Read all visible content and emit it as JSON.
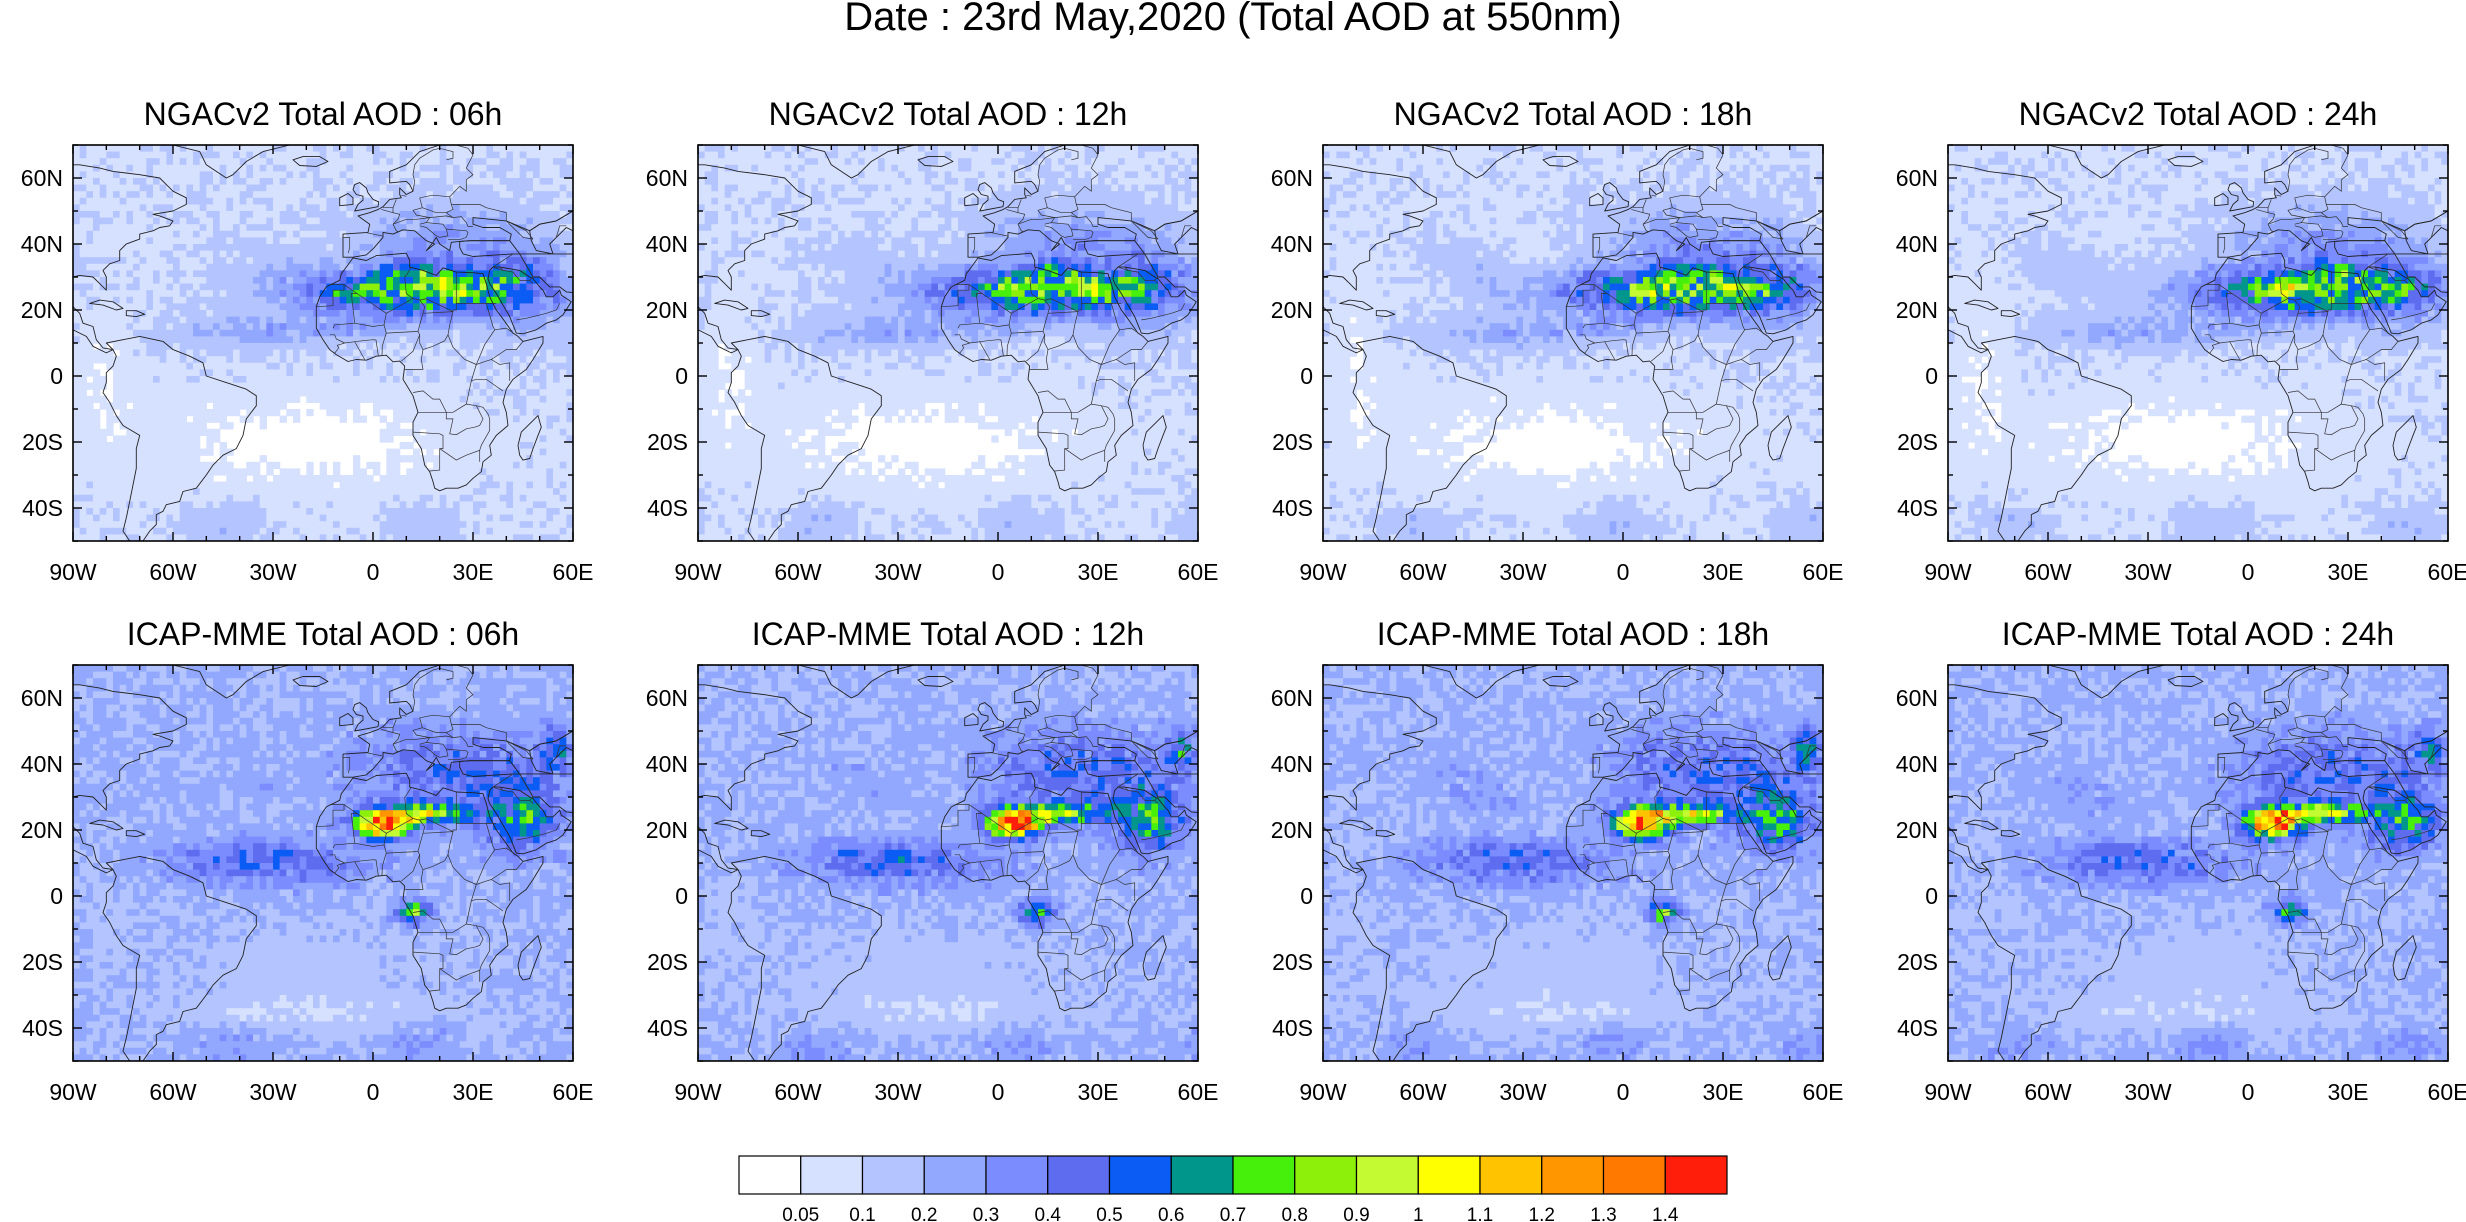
{
  "figure": {
    "title": "Date : 23rd May,2020 (Total AOD at 550nm)"
  },
  "panels": [
    {
      "row": 0,
      "col": 0,
      "model": "ngac",
      "title": "NGACv2 Total AOD : 06h"
    },
    {
      "row": 0,
      "col": 1,
      "model": "ngac",
      "title": "NGACv2 Total AOD : 12h"
    },
    {
      "row": 0,
      "col": 2,
      "model": "ngac",
      "title": "NGACv2 Total AOD : 18h"
    },
    {
      "row": 0,
      "col": 3,
      "model": "ngac",
      "title": "NGACv2 Total AOD : 24h"
    },
    {
      "row": 1,
      "col": 0,
      "model": "icap",
      "title": "ICAP-MME Total AOD : 06h"
    },
    {
      "row": 1,
      "col": 1,
      "model": "icap",
      "title": "ICAP-MME Total AOD : 12h"
    },
    {
      "row": 1,
      "col": 2,
      "model": "icap",
      "title": "ICAP-MME Total AOD : 18h"
    },
    {
      "row": 1,
      "col": 3,
      "model": "icap",
      "title": "ICAP-MME Total AOD : 24h"
    }
  ],
  "axes": {
    "lon_range": [
      -90,
      60
    ],
    "lat_range": [
      -50,
      70
    ],
    "x_ticks": [
      {
        "v": -90,
        "label": "90W"
      },
      {
        "v": -60,
        "label": "60W"
      },
      {
        "v": -30,
        "label": "30W"
      },
      {
        "v": 0,
        "label": "0"
      },
      {
        "v": 30,
        "label": "30E"
      },
      {
        "v": 60,
        "label": "60E"
      }
    ],
    "y_ticks": [
      {
        "v": 60,
        "label": "60N"
      },
      {
        "v": 40,
        "label": "40N"
      },
      {
        "v": 20,
        "label": "20N"
      },
      {
        "v": 0,
        "label": "0"
      },
      {
        "v": -20,
        "label": "20S"
      },
      {
        "v": -40,
        "label": "40S"
      }
    ]
  },
  "colorbar": {
    "colors": [
      "#ffffff",
      "#d6e0ff",
      "#b4c4ff",
      "#92a8ff",
      "#7a8cff",
      "#5e6cf0",
      "#0a5cf5",
      "#00968c",
      "#46f00a",
      "#8cf00a",
      "#c3fa32",
      "#ffff00",
      "#ffc300",
      "#ff9600",
      "#ff7800",
      "#ff1e0a"
    ],
    "labels": [
      "0.05",
      "0.1",
      "0.2",
      "0.3",
      "0.4",
      "0.5",
      "0.6",
      "0.7",
      "0.8",
      "0.9",
      "1",
      "1.1",
      "1.2",
      "1.3",
      "1.4"
    ]
  }
}
